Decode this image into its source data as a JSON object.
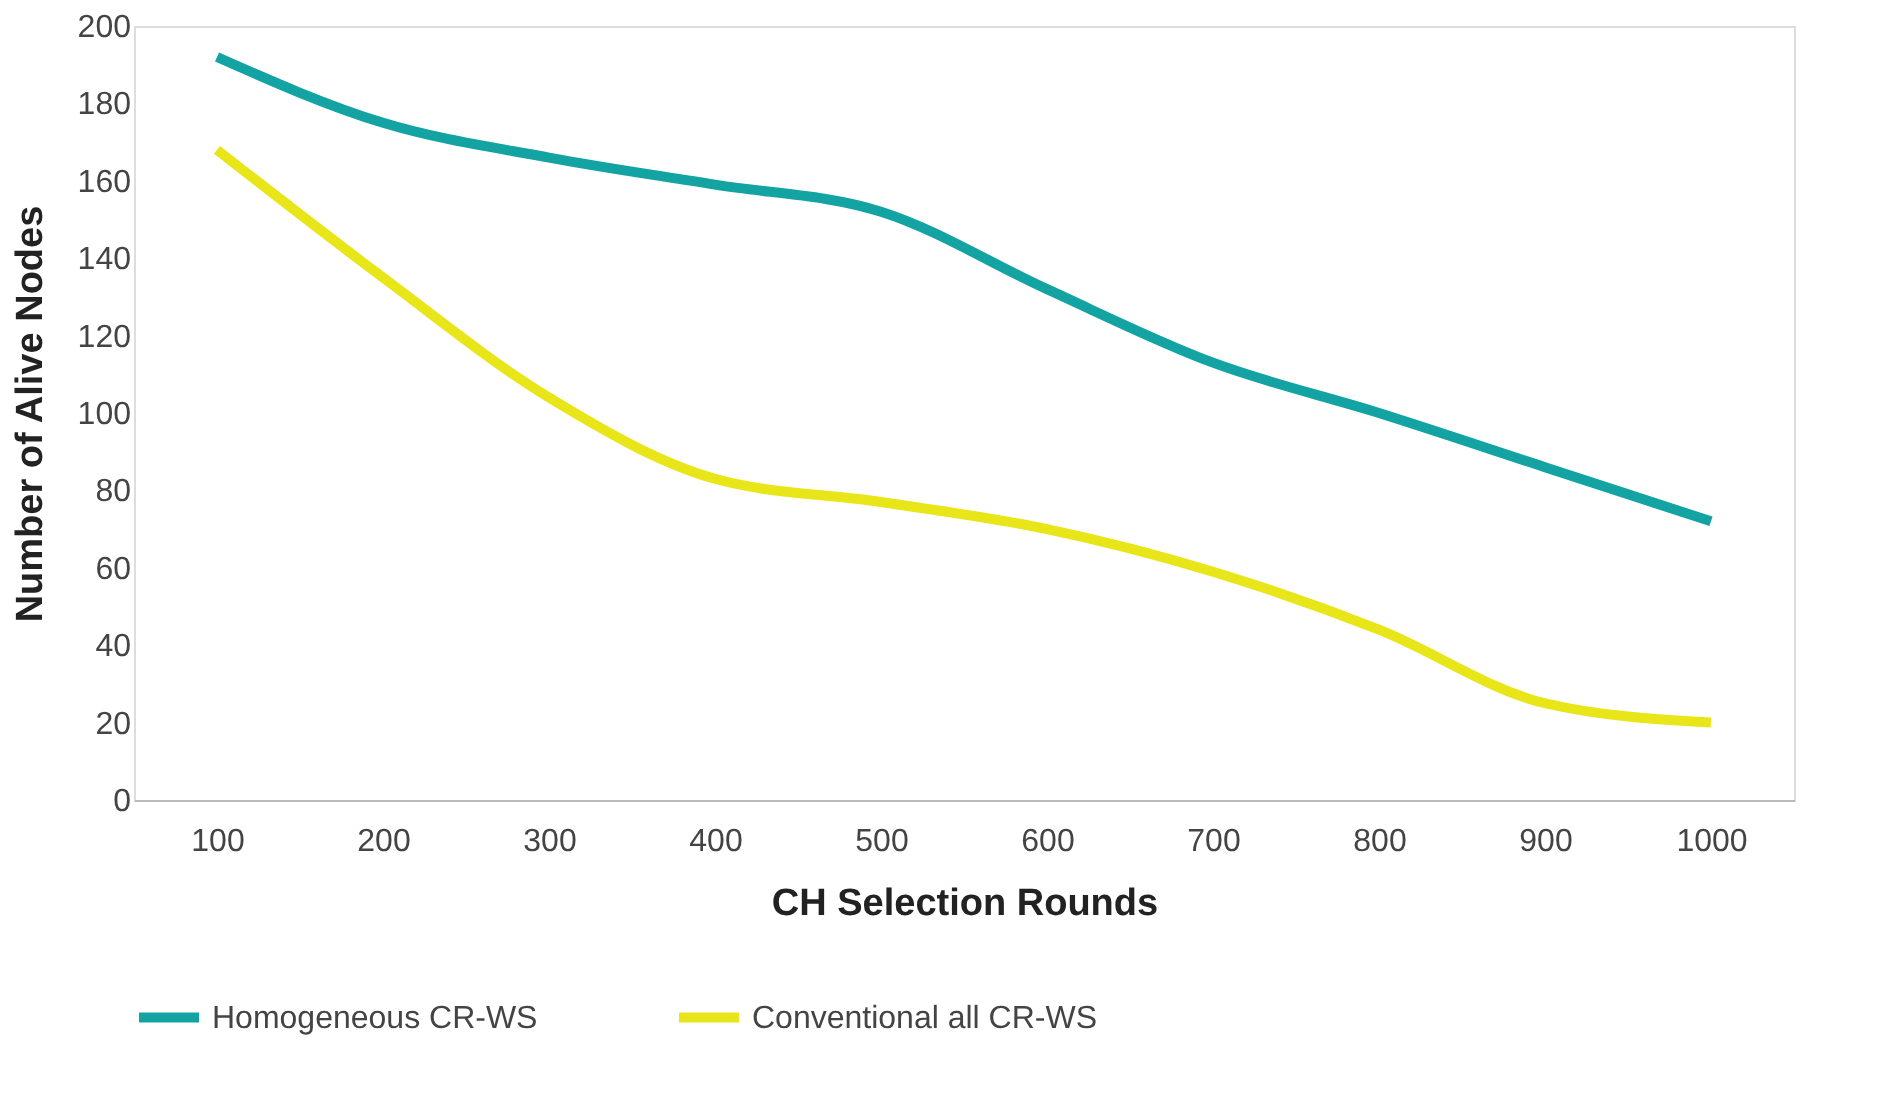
{
  "chart_data": {
    "type": "line",
    "xlabel": "CH Selection Rounds",
    "ylabel": "Number of Alive Nodes",
    "categories": [
      "100",
      "200",
      "300",
      "400",
      "500",
      "600",
      "700",
      "800",
      "900",
      "1000"
    ],
    "series": [
      {
        "name": "Homogeneous CR-WS",
        "color": "#14a3a3",
        "values": [
          192,
          175,
          166,
          159,
          152,
          132,
          113,
          100,
          86,
          72
        ]
      },
      {
        "name": "Conventional all CR-WS",
        "color": "#e8e619",
        "values": [
          168,
          135,
          104,
          83,
          77,
          70,
          59,
          44,
          25,
          20
        ]
      }
    ],
    "ylim": [
      0,
      200
    ],
    "yticks": [
      0,
      20,
      40,
      60,
      80,
      100,
      120,
      140,
      160,
      180,
      200
    ],
    "grid": false,
    "legend": "bottom",
    "marker": "none",
    "line_style": "solid"
  }
}
